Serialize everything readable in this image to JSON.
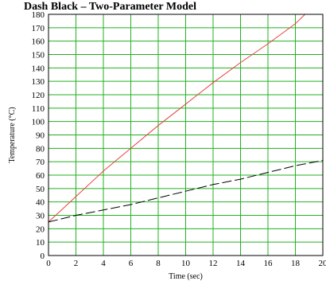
{
  "chart_data": {
    "type": "line",
    "title": "Dash Black – Two-Parameter Model",
    "xlabel": "Time (sec)",
    "ylabel": "Temperature (°C)",
    "xlim": [
      0,
      20
    ],
    "ylim": [
      0,
      180
    ],
    "x_ticks": [
      0,
      2,
      4,
      6,
      8,
      10,
      12,
      14,
      16,
      18,
      20
    ],
    "y_ticks": [
      0,
      10,
      20,
      30,
      40,
      50,
      60,
      70,
      80,
      90,
      100,
      110,
      120,
      130,
      140,
      150,
      160,
      170,
      180
    ],
    "grid": true,
    "series": [
      {
        "color": "#e8413c",
        "style": "solid",
        "x": [
          0,
          2,
          4,
          6,
          8,
          10,
          12,
          14,
          16,
          18,
          18.7
        ],
        "y": [
          25,
          44,
          63,
          80,
          97,
          113,
          129,
          144,
          158,
          173,
          180
        ]
      },
      {
        "color": "#000000",
        "style": "dashed",
        "x": [
          0,
          2,
          4,
          6,
          8,
          10,
          12,
          14,
          16,
          18,
          20
        ],
        "y": [
          25,
          30,
          34,
          38,
          43,
          48,
          53,
          57,
          62,
          67,
          71
        ]
      }
    ]
  }
}
